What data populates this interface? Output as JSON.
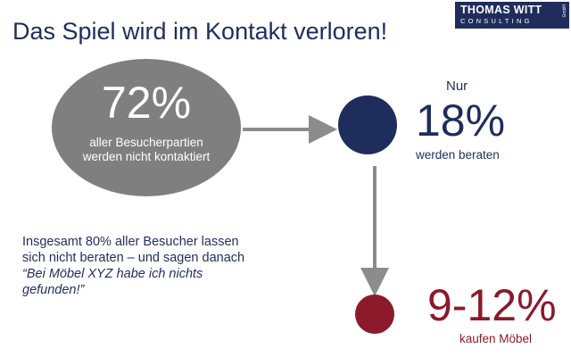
{
  "title": "Das Spiel wird im Kontakt verloren!",
  "logo": {
    "name": "THOMAS WITT",
    "subtitle": "CONSULTING",
    "suffix": "GmbH"
  },
  "stage1": {
    "percent": "72%",
    "text": "aller Besucherpartien werden nicht kontaktiert"
  },
  "stage2": {
    "prefix": "Nur",
    "percent": "18%",
    "text": "werden beraten"
  },
  "stage3": {
    "percent": "9-12%",
    "text": "kaufen Möbel"
  },
  "summary": {
    "line": "Insgesamt 80% aller Besucher lassen sich nicht beraten – und sagen danach",
    "quote": "“Bei Möbel XYZ habe ich nichts gefunden!”"
  },
  "colors": {
    "navy": "#1f2d5c",
    "gray": "#7f7f7f",
    "red": "#8b1a2b",
    "arrow": "#8c8c8c"
  }
}
